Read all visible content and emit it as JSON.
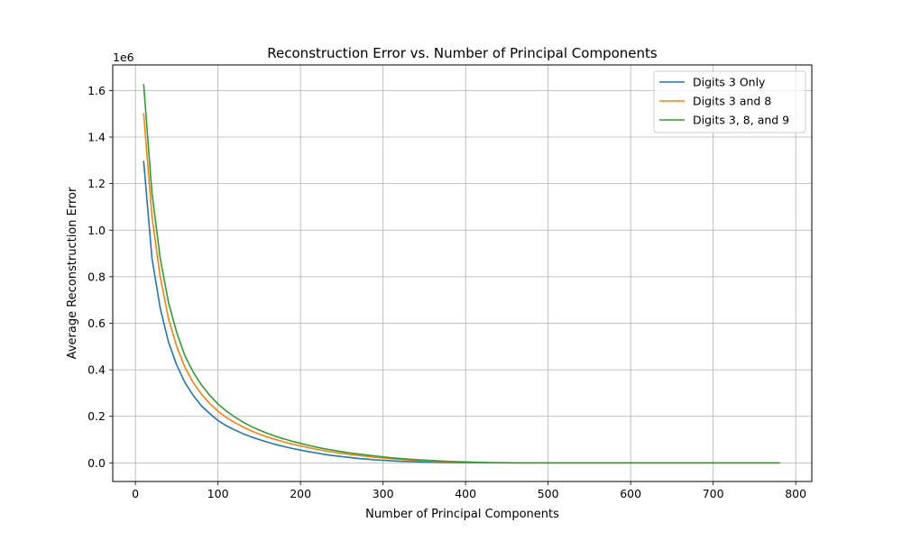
{
  "chart_data": {
    "type": "line",
    "title": "Reconstruction Error vs. Number of Principal Components",
    "xlabel": "Number of Principal Components",
    "ylabel": "Average Reconstruction Error",
    "y_offset_label": "1e6",
    "xlim": [
      -27.5,
      819.5
    ],
    "ylim": [
      -0.08,
      1.71
    ],
    "y_scale_note": "values in units of 1e6",
    "x_ticks": [
      0,
      100,
      200,
      300,
      400,
      500,
      600,
      700,
      800
    ],
    "y_ticks": [
      0.0,
      0.2,
      0.4,
      0.6,
      0.8,
      1.0,
      1.2,
      1.4,
      1.6
    ],
    "x_tick_labels": [
      "0",
      "100",
      "200",
      "300",
      "400",
      "500",
      "600",
      "700",
      "800"
    ],
    "y_tick_labels": [
      "0.0",
      "0.2",
      "0.4",
      "0.6",
      "0.8",
      "1.0",
      "1.2",
      "1.4",
      "1.6"
    ],
    "grid": true,
    "legend_position": "top-right",
    "x": [
      10,
      20,
      30,
      40,
      50,
      60,
      70,
      80,
      90,
      100,
      110,
      120,
      130,
      140,
      150,
      160,
      170,
      180,
      190,
      200,
      210,
      220,
      230,
      240,
      250,
      260,
      270,
      280,
      290,
      300,
      310,
      320,
      330,
      340,
      350,
      360,
      370,
      380,
      390,
      400,
      410,
      420,
      430,
      440,
      450,
      460,
      470,
      480,
      490,
      500,
      510,
      520,
      530,
      540,
      550,
      560,
      570,
      580,
      590,
      600,
      610,
      620,
      630,
      640,
      650,
      660,
      670,
      680,
      690,
      700,
      710,
      720,
      730,
      740,
      750,
      760,
      770,
      780
    ],
    "series": [
      {
        "name": "Digits 3 Only",
        "color": "#1f77b4",
        "values": [
          1.295,
          0.88,
          0.665,
          0.52,
          0.42,
          0.345,
          0.29,
          0.245,
          0.212,
          0.182,
          0.16,
          0.142,
          0.126,
          0.112,
          0.1,
          0.089,
          0.079,
          0.07,
          0.062,
          0.055,
          0.048,
          0.042,
          0.036,
          0.031,
          0.027,
          0.023,
          0.019,
          0.016,
          0.013,
          0.011,
          0.009,
          0.007,
          0.006,
          0.005,
          0.004,
          0.003,
          0.002,
          0.0015,
          0.001,
          0.0007,
          0.0005,
          0.0003,
          0.0002,
          0.0001,
          0.0001,
          0.0001,
          0.0,
          0.0,
          0.0,
          0.0,
          0.0,
          0.0,
          0.0,
          0.0,
          0.0,
          0.0,
          0.0,
          0.0,
          0.0,
          0.0,
          0.0,
          0.0,
          0.0,
          0.0,
          0.0,
          0.0,
          0.0,
          0.0,
          0.0,
          0.0,
          0.0,
          0.0,
          0.0,
          0.0,
          0.0,
          0.0,
          0.0,
          0.0
        ]
      },
      {
        "name": "Digits 3 and 8",
        "color": "#ff7f0e",
        "values": [
          1.5,
          1.06,
          0.8,
          0.62,
          0.5,
          0.41,
          0.345,
          0.295,
          0.255,
          0.222,
          0.195,
          0.174,
          0.155,
          0.138,
          0.124,
          0.111,
          0.1,
          0.09,
          0.081,
          0.073,
          0.065,
          0.058,
          0.052,
          0.046,
          0.041,
          0.036,
          0.032,
          0.028,
          0.024,
          0.021,
          0.018,
          0.015,
          0.013,
          0.011,
          0.009,
          0.007,
          0.006,
          0.0045,
          0.0035,
          0.0025,
          0.0018,
          0.0012,
          0.0008,
          0.0005,
          0.0003,
          0.0002,
          0.0001,
          0.0001,
          0.0,
          0.0,
          0.0,
          0.0,
          0.0,
          0.0,
          0.0,
          0.0,
          0.0,
          0.0,
          0.0,
          0.0,
          0.0,
          0.0,
          0.0,
          0.0,
          0.0,
          0.0,
          0.0,
          0.0,
          0.0,
          0.0,
          0.0,
          0.0,
          0.0,
          0.0,
          0.0,
          0.0,
          0.0,
          0.0
        ]
      },
      {
        "name": "Digits 3, 8, and 9",
        "color": "#2ca02c",
        "values": [
          1.625,
          1.16,
          0.88,
          0.69,
          0.56,
          0.46,
          0.39,
          0.335,
          0.29,
          0.253,
          0.223,
          0.198,
          0.176,
          0.157,
          0.141,
          0.127,
          0.114,
          0.103,
          0.093,
          0.084,
          0.075,
          0.067,
          0.06,
          0.054,
          0.048,
          0.043,
          0.038,
          0.034,
          0.03,
          0.026,
          0.022,
          0.019,
          0.016,
          0.014,
          0.012,
          0.01,
          0.008,
          0.0065,
          0.005,
          0.004,
          0.003,
          0.002,
          0.0014,
          0.0009,
          0.0005,
          0.0003,
          0.0002,
          0.0001,
          0.0,
          0.0,
          0.0,
          0.0,
          0.0,
          0.0,
          0.0,
          0.0,
          0.0,
          0.0,
          0.0,
          0.0,
          0.0,
          0.0,
          0.0,
          0.0,
          0.0,
          0.0,
          0.0,
          0.0,
          0.0,
          0.0,
          0.0,
          0.0,
          0.0,
          0.0,
          0.0,
          0.0,
          0.0,
          0.0
        ]
      }
    ]
  }
}
